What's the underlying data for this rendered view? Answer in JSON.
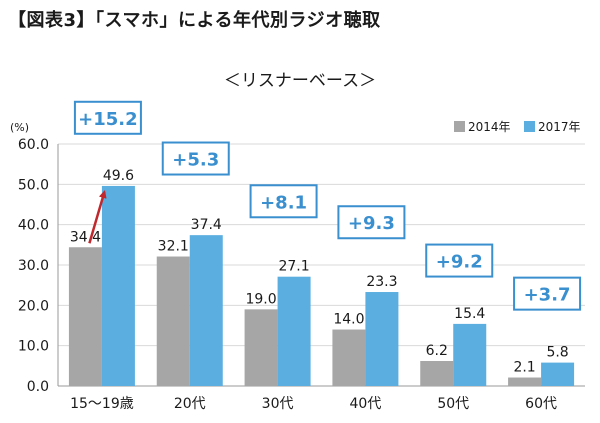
{
  "figure": {
    "title": "【図表3】「スマホ」による年代別ラジオ聴取",
    "subtitle": "＜リスナーベース＞"
  },
  "chart_data": {
    "type": "bar",
    "title": "【図表3】「スマホ」による年代別ラジオ聴取",
    "subtitle": "＜リスナーベース＞",
    "ylabel": "(%)",
    "xlabel": "",
    "ylim": [
      0,
      60
    ],
    "y_ticks": [
      "0.0",
      "10.0",
      "20.0",
      "30.0",
      "40.0",
      "50.0",
      "60.0"
    ],
    "grid": true,
    "legend_position": "top-right",
    "categories": [
      "15〜19歳",
      "20代",
      "30代",
      "40代",
      "50代",
      "60代"
    ],
    "series": [
      {
        "name": "2014年",
        "color": "#a6a6a6",
        "values": [
          34.4,
          32.1,
          19.0,
          14.0,
          6.2,
          2.1
        ],
        "labels": [
          "34.4",
          "32.1",
          "19.0",
          "14.0",
          "6.2",
          "2.1"
        ]
      },
      {
        "name": "2017年",
        "color": "#5aaee0",
        "values": [
          49.6,
          37.4,
          27.1,
          23.3,
          15.4,
          5.8
        ],
        "labels": [
          "49.6",
          "37.4",
          "27.1",
          "23.3",
          "15.4",
          "5.8"
        ]
      }
    ],
    "differences": [
      "+15.2",
      "+5.3",
      "+8.1",
      "+9.3",
      "+9.2",
      "+3.7"
    ],
    "difference_box_levels": [
      66.5,
      56.4,
      45.8,
      40.6,
      31.1,
      22.9
    ],
    "arrow_color": "#c0282d",
    "accent_color": "#3a8fcf"
  }
}
